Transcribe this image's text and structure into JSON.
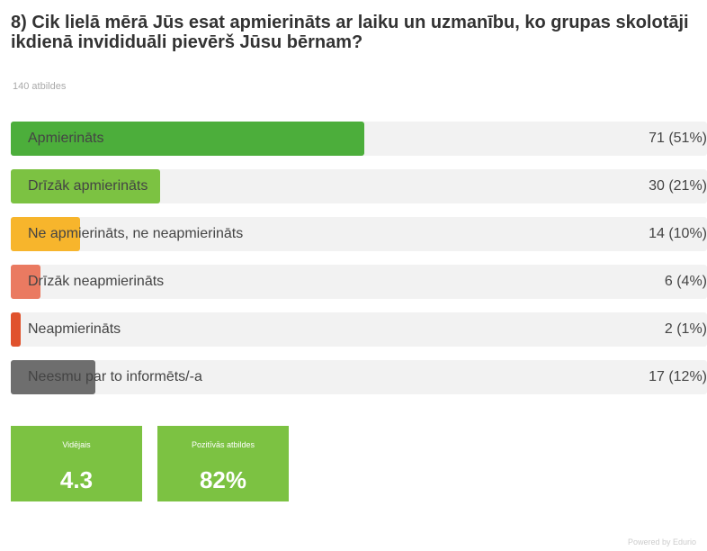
{
  "title": "8) Cik lielā mērā Jūs esat apmierināts ar laiku un uzmanību, ko grupas skolotāji ikdienā invididuāli pievērš Jūsu bērnam?",
  "responses": "140 atbildes",
  "chart_data": {
    "type": "bar",
    "orientation": "horizontal",
    "categories": [
      "Apmierināts",
      "Drīzāk apmierināts",
      "Ne apmierināts, ne neapmierināts",
      "Drīzāk neapmierināts",
      "Neapmierināts",
      "Neesmu par to informēts/-a"
    ],
    "values": [
      71,
      30,
      14,
      6,
      2,
      17
    ],
    "value_labels": [
      "71 (51%)",
      "30 (21%)",
      "14 (10%)",
      "6 (4%)",
      "2 (1%)",
      "17 (12%)"
    ],
    "max": 140,
    "colors": [
      "#4cae3b",
      "#7cc242",
      "#f7b52c",
      "#ea7a61",
      "#e0522d",
      "#6e6e6e"
    ]
  },
  "kpis": [
    {
      "label": "Vidējais",
      "value": "4.3"
    },
    {
      "label": "Pozitīvās atbildes",
      "value": "82%"
    }
  ],
  "powered_by": "Powered by Edurio"
}
